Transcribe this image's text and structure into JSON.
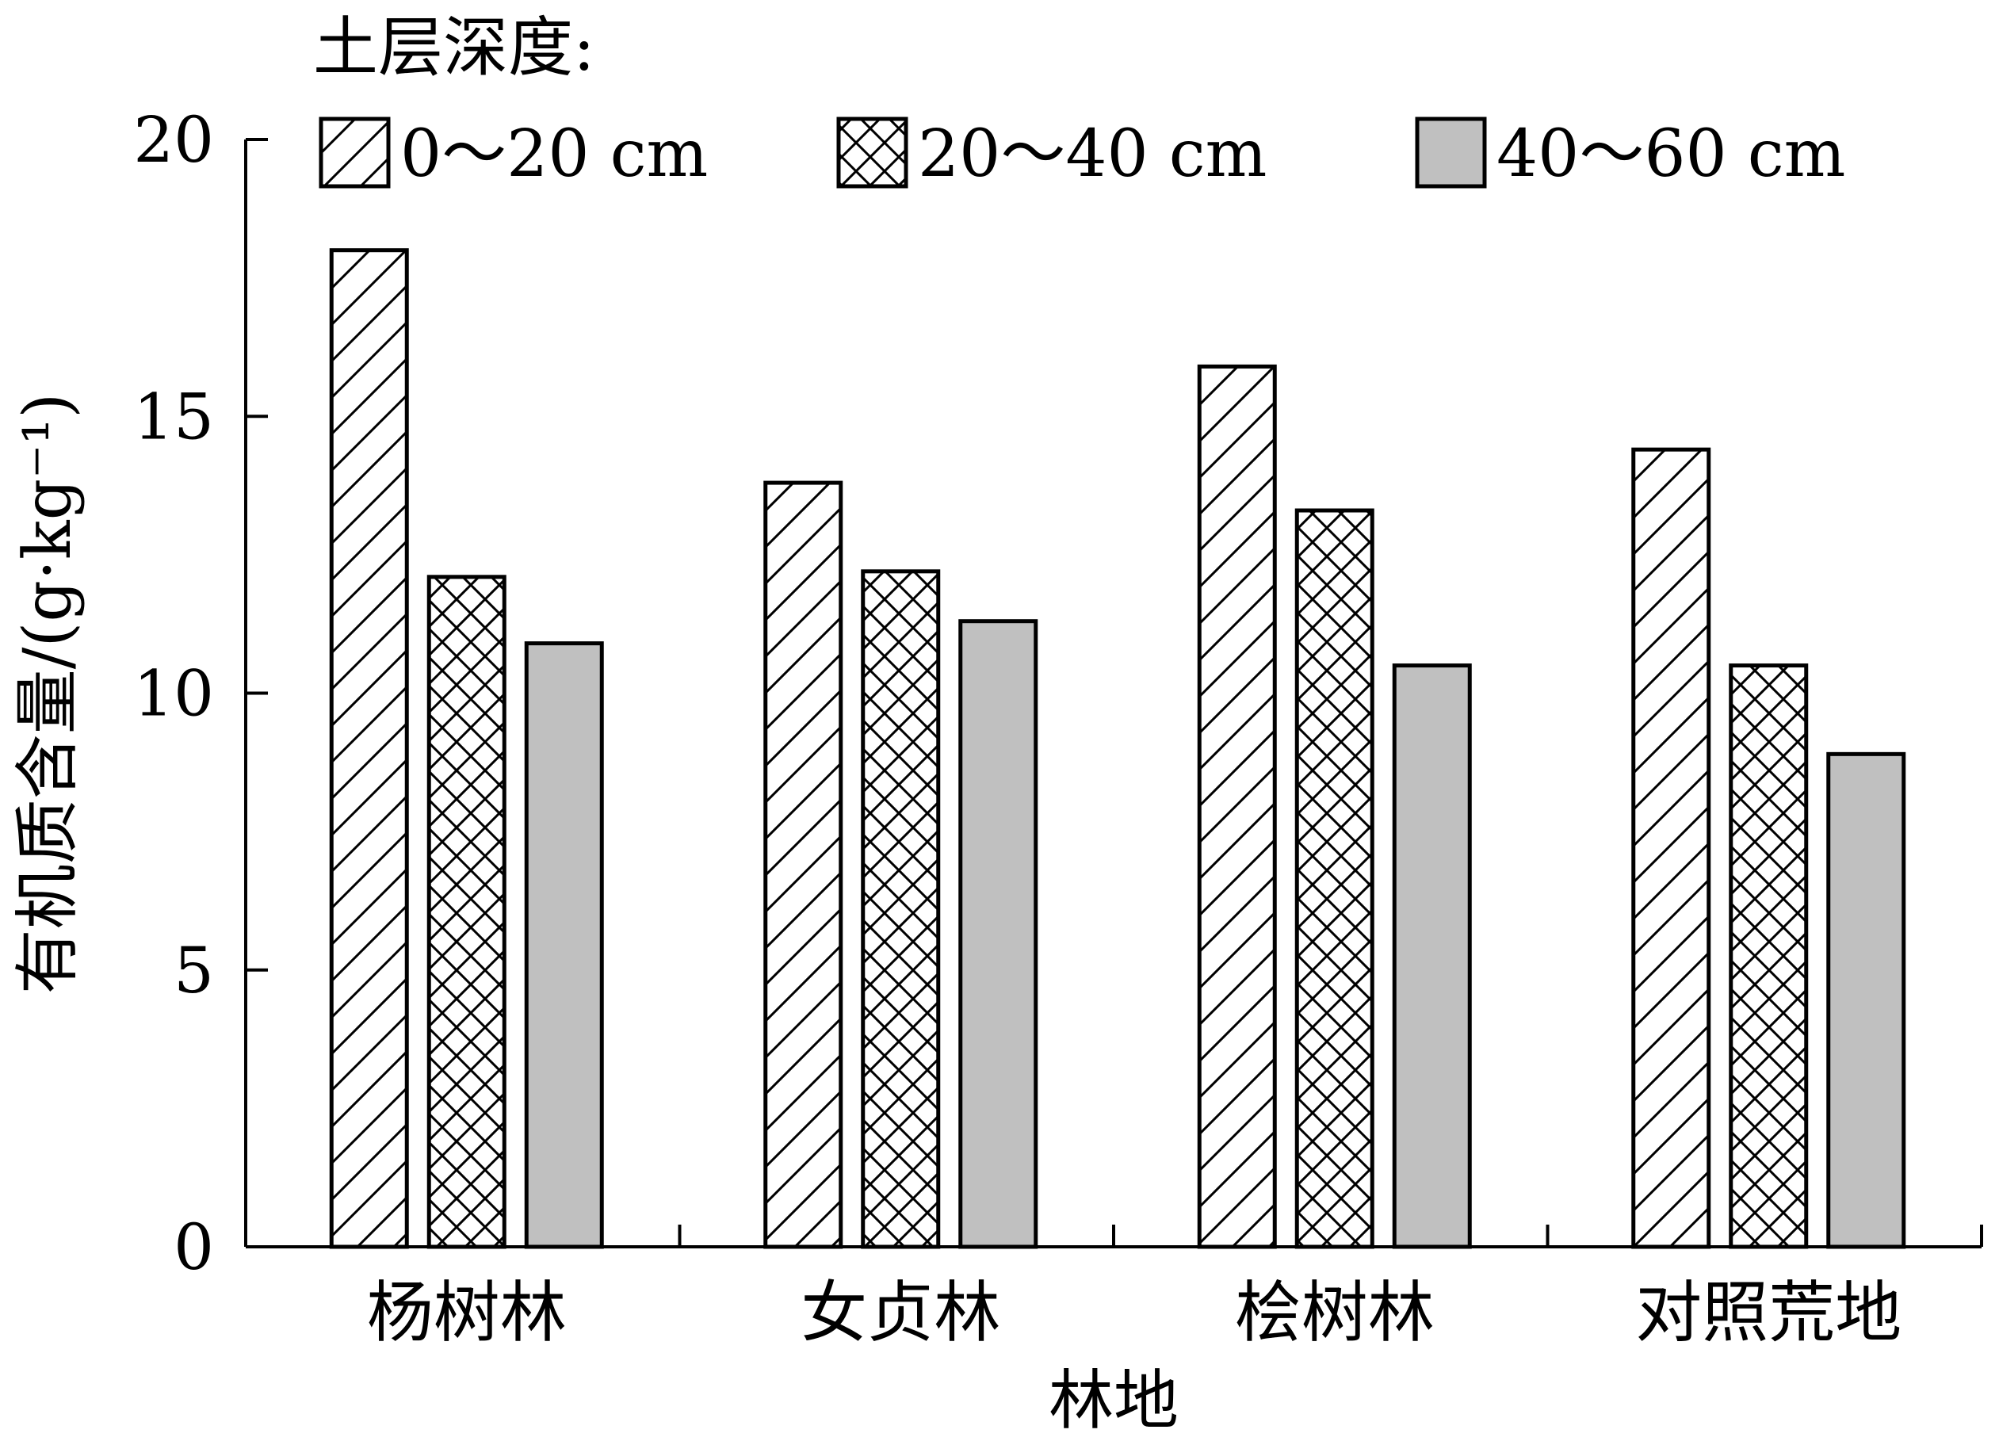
{
  "chart_data": {
    "type": "bar",
    "title": "",
    "xlabel": "林地",
    "ylabel": "有机质含量/(g·kg⁻¹)",
    "ylim": [
      0,
      20
    ],
    "yticks": [
      0,
      5,
      10,
      15,
      20
    ],
    "grid": false,
    "legend_title": "土层深度:",
    "legend_position": "top",
    "categories": [
      "杨树林",
      "女贞林",
      "桧树林",
      "对照荒地"
    ],
    "series": [
      {
        "name": "0～20 cm",
        "pattern": "diagonal-hatch",
        "color": "#ffffff",
        "values": [
          18.0,
          13.8,
          15.9,
          14.4
        ]
      },
      {
        "name": "20～40 cm",
        "pattern": "cross-hatch",
        "color": "#ffffff",
        "values": [
          12.1,
          12.2,
          13.3,
          10.5
        ]
      },
      {
        "name": "40～60 cm",
        "pattern": "solid",
        "color": "#c0c0c0",
        "values": [
          10.9,
          11.3,
          10.5,
          8.9
        ]
      }
    ]
  }
}
